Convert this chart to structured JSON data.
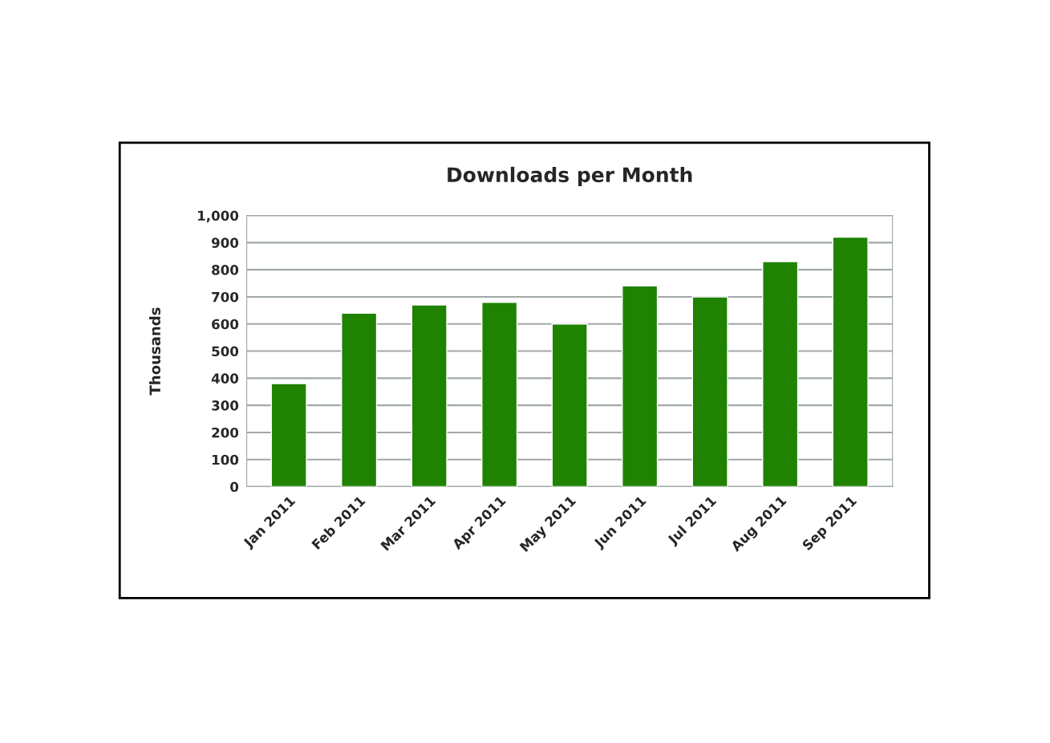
{
  "chart_data": {
    "type": "bar",
    "title": "Downloads per Month",
    "ylabel": "Thousands",
    "categories": [
      "Jan 2011",
      "Feb 2011",
      "Mar 2011",
      "Apr 2011",
      "May 2011",
      "Jun 2011",
      "Jul 2011",
      "Aug 2011",
      "Sep 2011"
    ],
    "values": [
      380,
      640,
      670,
      680,
      600,
      740,
      700,
      830,
      920
    ],
    "color": "#1f8200",
    "ylim": [
      0,
      1000
    ],
    "yticks": [
      0,
      100,
      200,
      300,
      400,
      500,
      600,
      700,
      800,
      900,
      {
        "value": 1000,
        "label": "1,000"
      }
    ],
    "grid": "y",
    "legend": false
  }
}
